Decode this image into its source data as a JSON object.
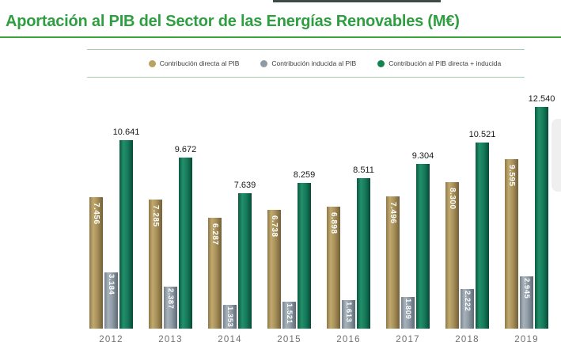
{
  "title": "Aportación al PIB del Sector de las Energías Renovables (M€)",
  "colors": {
    "title_green": "#2e9e41",
    "title_rule_green": "#3aa33a",
    "legend_line_green": "#a6ccb1",
    "direct_series": "#a9915a",
    "induced_series": "#909ca6",
    "total_series": "#157a5a"
  },
  "legend": {
    "items": [
      {
        "id": "direct",
        "label": "Contribución directa al PIB",
        "color": "#bba263"
      },
      {
        "id": "induced",
        "label": "Contribución inducida al PIB",
        "color": "#8e9aa5"
      },
      {
        "id": "total",
        "label": "Contribución al PIB directa + inducida",
        "color": "#15834f"
      }
    ]
  },
  "chart_data": {
    "type": "bar",
    "title": "Aportación al PIB del Sector de las Energías Renovables (M€)",
    "categories": [
      "2012",
      "2013",
      "2014",
      "2015",
      "2016",
      "2017",
      "2018",
      "2019"
    ],
    "series": [
      {
        "name": "Contribución directa al PIB",
        "values": [
          7456,
          7285,
          6287,
          6738,
          6898,
          7496,
          8300,
          9595
        ],
        "labels": [
          "7.456",
          "7.285",
          "6.287",
          "6.738",
          "6.898",
          "7.496",
          "8.300",
          "9.595"
        ],
        "color": "#a9915a",
        "label_style": "inside-vertical-white"
      },
      {
        "name": "Contribución inducida al PIB",
        "values": [
          3184,
          2387,
          1353,
          1521,
          1613,
          1809,
          2222,
          2945
        ],
        "labels": [
          "3.184",
          "2.387",
          "1.353",
          "1.521",
          "1.613",
          "1.809",
          "2.222",
          "2.945"
        ],
        "color": "#909ca6",
        "label_style": "inside-vertical-white"
      },
      {
        "name": "Contribución al PIB directa + inducida",
        "values": [
          10641,
          9672,
          7639,
          8259,
          8511,
          9304,
          10521,
          12540
        ],
        "labels": [
          "10.641",
          "9.672",
          "7.639",
          "8.259",
          "8.511",
          "9.304",
          "10.521",
          "12.540"
        ],
        "color": "#157a5a",
        "label_style": "above-horizontal-black"
      }
    ],
    "xlabel": "",
    "ylabel": "",
    "ylim": [
      0,
      12540
    ],
    "grid": false,
    "axis_lines": false,
    "legend_position": "top",
    "value_format": "thousands-dot"
  }
}
